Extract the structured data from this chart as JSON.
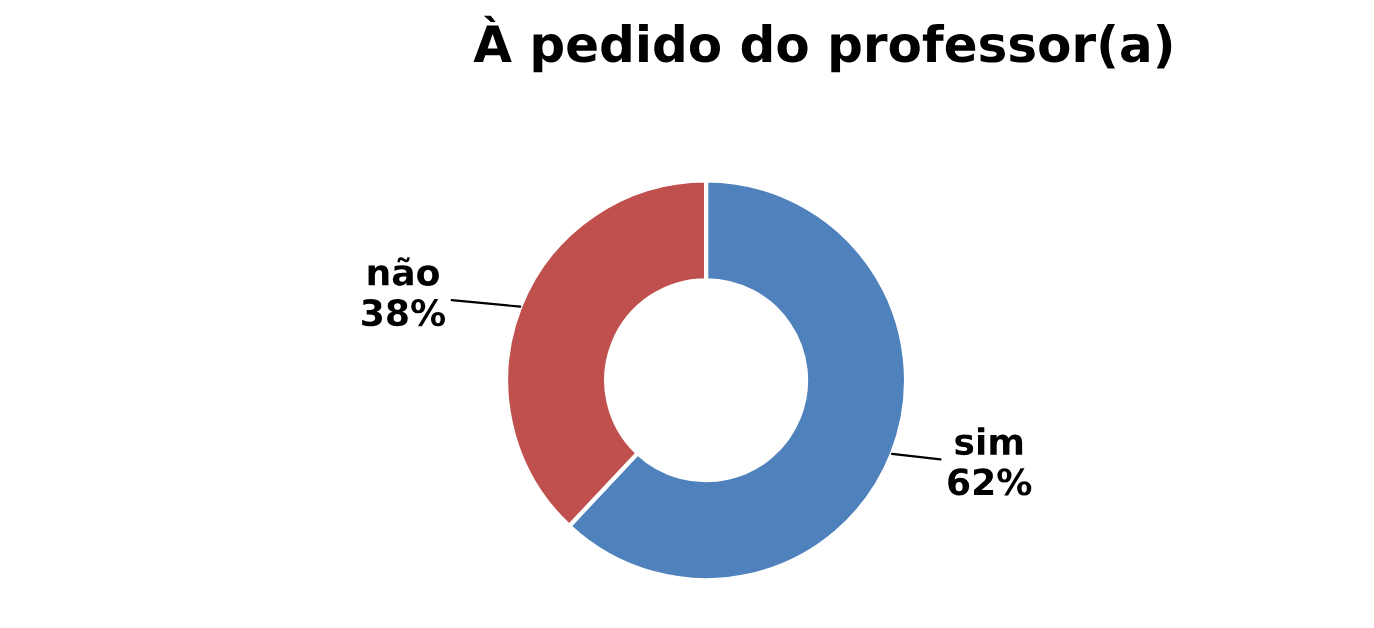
{
  "chart_data": {
    "type": "donut",
    "title": "À pedido do professor(a)",
    "categories": [
      "sim",
      "não"
    ],
    "values": [
      62,
      38
    ],
    "value_labels": [
      "62%",
      "38%"
    ],
    "colors": [
      "#4f81bd",
      "#c0504d"
    ],
    "legend": false
  }
}
